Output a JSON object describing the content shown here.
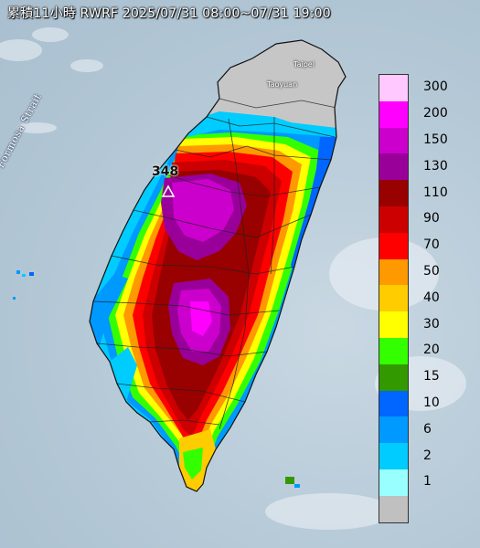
{
  "title": "累積11小時 RWRF 2025/07/31 08:00~07/31 19:00",
  "strait_label": "Formosa Strait",
  "cities": {
    "taipei": "Taipei",
    "taoyuan": "Taoyuan"
  },
  "max_value_label": "348",
  "legend": [
    {
      "label": "300",
      "color": "#ffc8ff"
    },
    {
      "label": "200",
      "color": "#ff00ff"
    },
    {
      "label": "150",
      "color": "#cc00cc"
    },
    {
      "label": "130",
      "color": "#990099"
    },
    {
      "label": "110",
      "color": "#990000"
    },
    {
      "label": "90",
      "color": "#cc0000"
    },
    {
      "label": "70",
      "color": "#ff0000"
    },
    {
      "label": "50",
      "color": "#ff9900"
    },
    {
      "label": "40",
      "color": "#ffcc00"
    },
    {
      "label": "30",
      "color": "#ffff00"
    },
    {
      "label": "20",
      "color": "#33ff00"
    },
    {
      "label": "15",
      "color": "#339900"
    },
    {
      "label": "10",
      "color": "#0066ff"
    },
    {
      "label": "6",
      "color": "#0099ff"
    },
    {
      "label": "2",
      "color": "#00ccff"
    },
    {
      "label": "1",
      "color": "#99ffff"
    },
    {
      "label": "",
      "color": "#c0c0c0"
    }
  ]
}
